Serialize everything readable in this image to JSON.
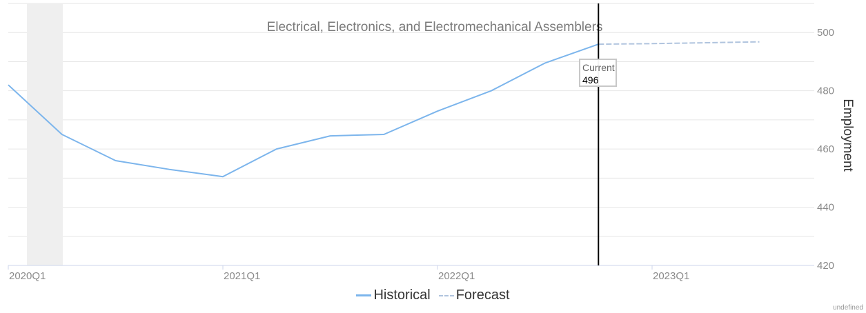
{
  "chart_data": {
    "type": "line",
    "title": "Electrical, Electronics, and Electromechanical Assemblers",
    "ylabel": "Employment",
    "ylim": [
      420,
      510
    ],
    "yticks": [
      420,
      440,
      460,
      480,
      500
    ],
    "x_tick_labels": [
      "2020Q1",
      "2021Q1",
      "2022Q1",
      "2023Q1"
    ],
    "grid": true,
    "legend_position": "bottom",
    "series": [
      {
        "name": "Historical",
        "color": "#7cb5ec",
        "style": "solid",
        "points": [
          {
            "x": "2020Q1",
            "y": 482
          },
          {
            "x": "2020Q2",
            "y": 465
          },
          {
            "x": "2020Q3",
            "y": 456
          },
          {
            "x": "2020Q4",
            "y": 453
          },
          {
            "x": "2021Q1",
            "y": 450.5
          },
          {
            "x": "2021Q2",
            "y": 460
          },
          {
            "x": "2021Q3",
            "y": 464.5
          },
          {
            "x": "2021Q4",
            "y": 465
          },
          {
            "x": "2022Q1",
            "y": 473
          },
          {
            "x": "2022Q2",
            "y": 480
          },
          {
            "x": "2022Q3",
            "y": 489.5
          },
          {
            "x": "2022Q4",
            "y": 496
          }
        ]
      },
      {
        "name": "Forecast",
        "color": "#b0c4de",
        "style": "dashed",
        "points": [
          {
            "x": "2022Q4",
            "y": 496
          },
          {
            "x": "2023Q1",
            "y": 496.2
          },
          {
            "x": "2023Q2",
            "y": 496.5
          },
          {
            "x": "2023Q3",
            "y": 496.8
          }
        ]
      }
    ],
    "current_marker": {
      "x": "2022Q4",
      "label": "Current",
      "value": "496"
    },
    "recession_band": {
      "from": "2020Q1",
      "to": "2020Q2"
    }
  },
  "credit": "undefined"
}
